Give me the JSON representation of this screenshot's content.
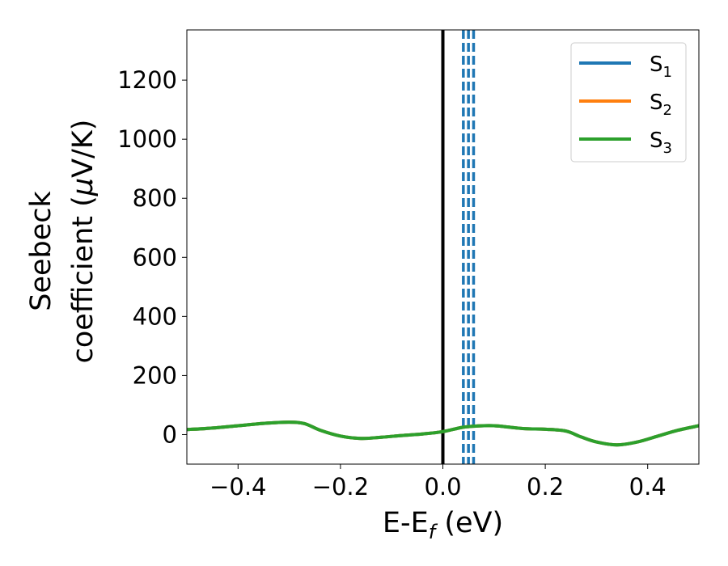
{
  "chart_data": {
    "type": "line",
    "title": "",
    "xlabel_main": "E-E",
    "xlabel_sub": "f",
    "xlabel_tail": " (eV)",
    "ylabel_line1": "Seebeck",
    "ylabel_line2_pre": "coefficient  (",
    "ylabel_mu": "μ",
    "ylabel_line2_post": "V/K)",
    "xlim": [
      -0.5,
      0.5
    ],
    "ylim": [
      -100,
      1370
    ],
    "xticks": [
      -0.4,
      -0.2,
      0.0,
      0.2,
      0.4
    ],
    "xtick_labels": [
      "−0.4",
      "−0.2",
      "0.0",
      "0.2",
      "0.4"
    ],
    "yticks": [
      0,
      200,
      400,
      600,
      800,
      1000,
      1200
    ],
    "ytick_labels": [
      "0",
      "200",
      "400",
      "600",
      "800",
      "1000",
      "1200"
    ],
    "grid": false,
    "legend_position": "top-right",
    "vertical_lines": [
      {
        "x": 0.0,
        "style": "solid",
        "color": "#000000"
      },
      {
        "x": 0.04,
        "style": "dashed",
        "color": "#1f77b4"
      },
      {
        "x": 0.05,
        "style": "dashed",
        "color": "#1f77b4"
      },
      {
        "x": 0.06,
        "style": "dashed",
        "color": "#1f77b4"
      }
    ],
    "series": [
      {
        "name_base": "S",
        "name_sub": "1",
        "color": "#1f77b4",
        "x": [
          -0.5,
          -0.45,
          -0.4,
          -0.35,
          -0.3,
          -0.27,
          -0.24,
          -0.2,
          -0.16,
          -0.12,
          -0.08,
          -0.04,
          0.0,
          0.04,
          0.08,
          0.1,
          0.12,
          0.16,
          0.2,
          0.24,
          0.27,
          0.3,
          0.34,
          0.38,
          0.42,
          0.46,
          0.5
        ],
        "y": [
          17,
          22,
          30,
          38,
          42,
          37,
          15,
          -5,
          -13,
          -9,
          -3,
          2,
          10,
          25,
          30,
          30,
          27,
          20,
          18,
          12,
          -8,
          -25,
          -35,
          -25,
          -5,
          15,
          30
        ]
      },
      {
        "name_base": "S",
        "name_sub": "2",
        "color": "#ff7f0e",
        "x": [
          -0.5,
          -0.45,
          -0.4,
          -0.35,
          -0.3,
          -0.27,
          -0.24,
          -0.2,
          -0.16,
          -0.12,
          -0.08,
          -0.04,
          0.0,
          0.04,
          0.08,
          0.1,
          0.12,
          0.16,
          0.2,
          0.24,
          0.27,
          0.3,
          0.34,
          0.38,
          0.42,
          0.46,
          0.5
        ],
        "y": [
          17,
          22,
          30,
          38,
          42,
          37,
          15,
          -5,
          -13,
          -9,
          -3,
          2,
          10,
          25,
          30,
          30,
          27,
          20,
          18,
          12,
          -8,
          -25,
          -35,
          -25,
          -5,
          15,
          30
        ]
      },
      {
        "name_base": "S",
        "name_sub": "3",
        "color": "#2ca02c",
        "x": [
          -0.5,
          -0.45,
          -0.4,
          -0.35,
          -0.3,
          -0.27,
          -0.24,
          -0.2,
          -0.16,
          -0.12,
          -0.08,
          -0.04,
          0.0,
          0.04,
          0.08,
          0.1,
          0.12,
          0.16,
          0.2,
          0.24,
          0.27,
          0.3,
          0.34,
          0.38,
          0.42,
          0.46,
          0.5
        ],
        "y": [
          17,
          22,
          30,
          38,
          42,
          37,
          15,
          -5,
          -13,
          -9,
          -3,
          2,
          10,
          25,
          30,
          30,
          27,
          20,
          18,
          12,
          -8,
          -25,
          -35,
          -25,
          -5,
          15,
          30
        ]
      }
    ]
  }
}
